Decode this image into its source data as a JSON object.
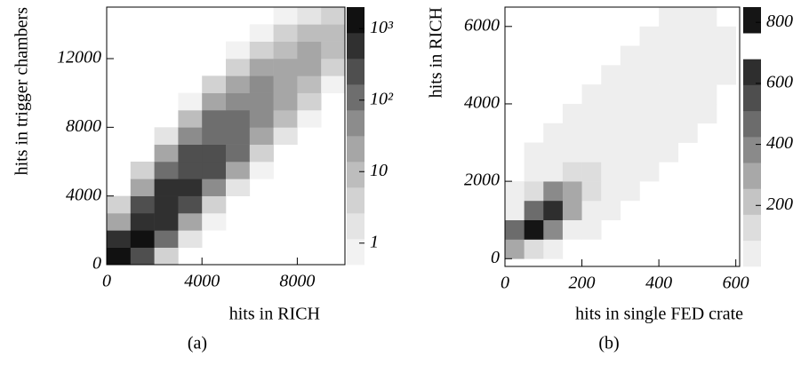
{
  "chart_data": [
    {
      "type": "heatmap",
      "caption": "(a)",
      "x_label": "hits in RICH",
      "y_label": "hits in trigger chambers",
      "xlim": [
        0,
        10000
      ],
      "xticks": [
        0,
        4000,
        8000
      ],
      "ylim": [
        0,
        15000
      ],
      "yticks": [
        0,
        4000,
        8000,
        12000
      ],
      "zlim": [
        0.5,
        2000
      ],
      "zlog": true,
      "zticks": [
        1,
        10,
        {
          "value": 100,
          "label": "10²"
        },
        {
          "value": 1000,
          "label": "10³"
        }
      ],
      "palette": [
        "#f2f2f2",
        "#e4e4e4",
        "#d2d2d2",
        "#bdbdbd",
        "#a6a6a6",
        "#8c8c8c",
        "#6e6e6e",
        "#4f4f4f",
        "#303030",
        "#111111"
      ],
      "x_bins": [
        0,
        1000,
        2000,
        3000,
        4000,
        5000,
        6000,
        7000,
        8000,
        9000,
        10000
      ],
      "y_bins": [
        0,
        1000,
        2000,
        3000,
        4000,
        5000,
        6000,
        7000,
        8000,
        9000,
        10000,
        11000,
        12000,
        13000,
        14000,
        15000
      ],
      "counts": [
        [
          1500,
          200,
          5,
          0,
          0,
          0,
          0,
          0,
          0,
          0
        ],
        [
          400,
          900,
          80,
          2,
          0,
          0,
          0,
          0,
          0,
          0
        ],
        [
          30,
          700,
          500,
          20,
          1,
          0,
          0,
          0,
          0,
          0
        ],
        [
          3,
          200,
          600,
          200,
          5,
          0,
          0,
          0,
          0,
          0
        ],
        [
          0,
          30,
          400,
          400,
          60,
          2,
          0,
          0,
          0,
          0
        ],
        [
          0,
          3,
          120,
          350,
          200,
          20,
          1,
          0,
          0,
          0
        ],
        [
          0,
          0,
          20,
          200,
          250,
          80,
          5,
          0,
          0,
          0
        ],
        [
          0,
          0,
          2,
          60,
          150,
          120,
          30,
          2,
          0,
          0
        ],
        [
          0,
          0,
          0,
          10,
          80,
          100,
          60,
          10,
          1,
          0
        ],
        [
          0,
          0,
          0,
          1,
          20,
          60,
          50,
          25,
          3,
          0
        ],
        [
          0,
          0,
          0,
          0,
          3,
          20,
          40,
          30,
          10,
          1
        ],
        [
          0,
          0,
          0,
          0,
          0,
          5,
          20,
          25,
          15,
          4
        ],
        [
          0,
          0,
          0,
          0,
          0,
          1,
          5,
          12,
          15,
          8
        ],
        [
          0,
          0,
          0,
          0,
          0,
          0,
          1,
          4,
          8,
          8
        ],
        [
          0,
          0,
          0,
          0,
          0,
          0,
          0,
          1,
          2,
          4
        ]
      ]
    },
    {
      "type": "heatmap",
      "caption": "(b)",
      "x_label": "hits in single FED crate",
      "y_label": "hits in RICH",
      "xlim": [
        0,
        610
      ],
      "xticks": [
        0,
        200,
        400,
        600
      ],
      "ylim": [
        -200,
        6500
      ],
      "yticks": [
        0,
        2000,
        4000,
        6000
      ],
      "zlim": [
        0,
        850
      ],
      "zlog": false,
      "zticks": [
        200,
        400,
        600,
        800
      ],
      "palette": [
        "#eeeeee",
        "#dddddd",
        "#c4c4c4",
        "#a8a8a8",
        "#8a8a8a",
        "#6c6c6c",
        "#4e4e4e",
        "#2e2e2e",
        "#ffffff",
        "#151515"
      ],
      "x_bins": [
        0,
        50,
        100,
        150,
        200,
        250,
        300,
        350,
        400,
        450,
        500,
        550,
        600
      ],
      "y_bins": [
        0,
        500,
        1000,
        1500,
        2000,
        2500,
        3000,
        3500,
        4000,
        4500,
        5000,
        5500,
        6000,
        6500
      ],
      "counts": [
        [
          300,
          150,
          20,
          0,
          0,
          0,
          0,
          0,
          0,
          0,
          0,
          0
        ],
        [
          500,
          800,
          400,
          60,
          5,
          0,
          0,
          0,
          0,
          0,
          0,
          0
        ],
        [
          80,
          500,
          600,
          300,
          40,
          3,
          0,
          0,
          0,
          0,
          0,
          0
        ],
        [
          5,
          100,
          350,
          300,
          120,
          15,
          1,
          0,
          0,
          0,
          0,
          0
        ],
        [
          0,
          10,
          80,
          150,
          100,
          30,
          5,
          1,
          0,
          0,
          0,
          0
        ],
        [
          0,
          1,
          10,
          40,
          60,
          30,
          10,
          3,
          1,
          0,
          0,
          0
        ],
        [
          0,
          0,
          1,
          8,
          20,
          25,
          15,
          8,
          3,
          1,
          0,
          0
        ],
        [
          0,
          0,
          0,
          1,
          5,
          12,
          15,
          12,
          6,
          2,
          1,
          0
        ],
        [
          0,
          0,
          0,
          0,
          1,
          5,
          10,
          12,
          10,
          5,
          2,
          0
        ],
        [
          0,
          0,
          0,
          0,
          0,
          1,
          5,
          8,
          10,
          8,
          4,
          1
        ],
        [
          0,
          0,
          0,
          0,
          0,
          0,
          1,
          4,
          6,
          6,
          4,
          1
        ],
        [
          0,
          0,
          0,
          0,
          0,
          0,
          0,
          1,
          2,
          3,
          3,
          1
        ],
        [
          0,
          0,
          0,
          0,
          0,
          0,
          0,
          0,
          1,
          1,
          1,
          0
        ]
      ]
    }
  ]
}
